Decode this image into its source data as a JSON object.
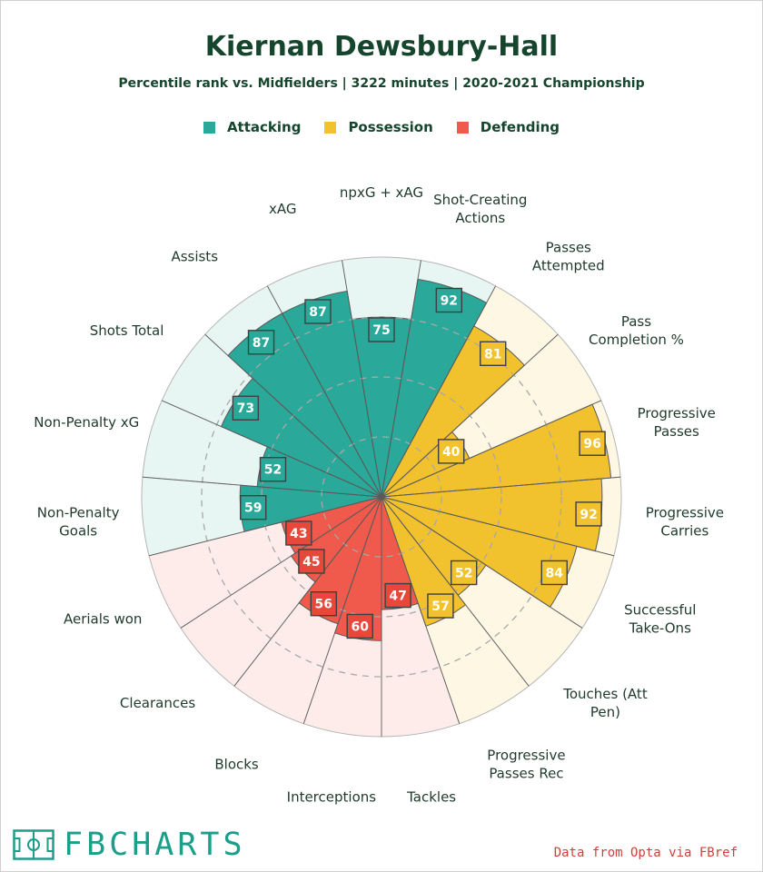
{
  "header": {
    "title": "Kiernan Dewsbury-Hall",
    "subtitle": "Percentile rank vs. Midfielders | 3222 minutes | 2020-2021 Championship"
  },
  "legend": [
    {
      "label": "Attacking",
      "color": "#2aa899"
    },
    {
      "label": "Possession",
      "color": "#f2c12e"
    },
    {
      "label": "Defending",
      "color": "#ef5a4c"
    }
  ],
  "chart_data": {
    "type": "radar",
    "title": "Kiernan Dewsbury-Hall",
    "scale": [
      0,
      100
    ],
    "grid_rings": [
      25,
      50,
      75
    ],
    "categories": [
      {
        "label": "npxG + xAG",
        "value": 75,
        "group": "Attacking"
      },
      {
        "label": "Shot-Creating Actions",
        "value": 92,
        "group": "Attacking"
      },
      {
        "label": "Passes Attempted",
        "value": 81,
        "group": "Possession"
      },
      {
        "label": "Pass Completion %",
        "value": 40,
        "group": "Possession"
      },
      {
        "label": "Progressive Passes",
        "value": 96,
        "group": "Possession"
      },
      {
        "label": "Progressive Carries",
        "value": 92,
        "group": "Possession"
      },
      {
        "label": "Successful Take-Ons",
        "value": 84,
        "group": "Possession"
      },
      {
        "label": "Touches (Att Pen)",
        "value": 52,
        "group": "Possession"
      },
      {
        "label": "Progressive Passes Rec",
        "value": 57,
        "group": "Possession"
      },
      {
        "label": "Tackles",
        "value": 47,
        "group": "Defending"
      },
      {
        "label": "Interceptions",
        "value": 60,
        "group": "Defending"
      },
      {
        "label": "Blocks",
        "value": 56,
        "group": "Defending"
      },
      {
        "label": "Clearances",
        "value": 45,
        "group": "Defending"
      },
      {
        "label": "Aerials won",
        "value": 43,
        "group": "Defending"
      },
      {
        "label": "Non-Penalty Goals",
        "value": 59,
        "group": "Attacking"
      },
      {
        "label": "Non-Penalty xG",
        "value": 52,
        "group": "Attacking"
      },
      {
        "label": "Shots Total",
        "value": 73,
        "group": "Attacking"
      },
      {
        "label": "Assists",
        "value": 87,
        "group": "Attacking"
      },
      {
        "label": "xAG",
        "value": 87,
        "group": "Attacking"
      }
    ]
  },
  "group_colors": {
    "Attacking": {
      "fill": "#2aa899",
      "bg": "#e8f6f3",
      "box": "#2aa899"
    },
    "Possession": {
      "fill": "#f2c12e",
      "bg": "#fef7e4",
      "box": "#f2c12e"
    },
    "Defending": {
      "fill": "#ef5a4c",
      "bg": "#fdecea",
      "box": "#e8473b"
    }
  },
  "footer": {
    "logo": "FBCHARTS",
    "source": "Data from Opta via FBref"
  }
}
